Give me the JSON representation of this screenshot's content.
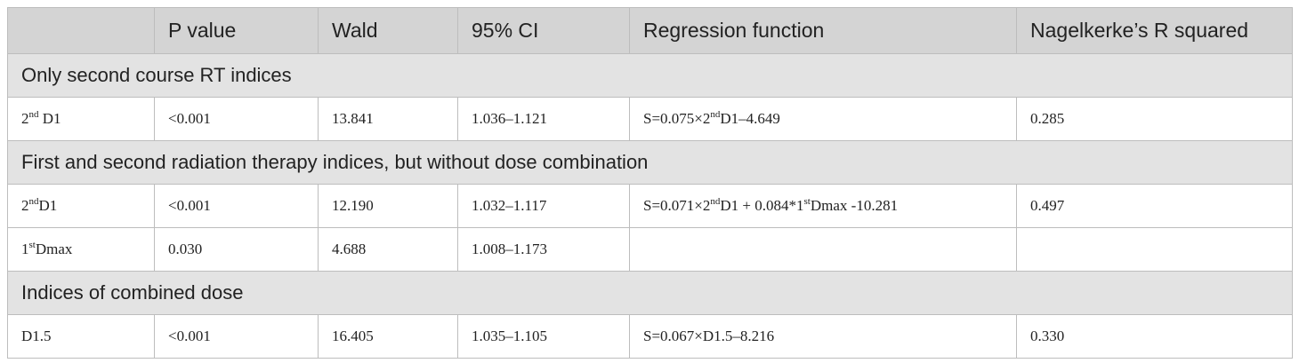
{
  "table": {
    "header": [
      null,
      "P value",
      "Wald",
      "95% CI",
      "Regression function",
      "Nagelkerke’s R squared"
    ],
    "sections": [
      {
        "title": "Only second course RT indices",
        "rows": [
          [
            [
              "2",
              {
                "sup": "nd"
              },
              " D1"
            ],
            "<0.001",
            "13.841",
            "1.036–1.121",
            [
              "S=0.075×2",
              {
                "sup": "nd"
              },
              "D1–4.649"
            ],
            "0.285"
          ]
        ]
      },
      {
        "title": "First and second radiation therapy indices, but without dose combination",
        "rows": [
          [
            [
              "2",
              {
                "sup": "nd"
              },
              "D1"
            ],
            "<0.001",
            "12.190",
            "1.032–1.117",
            [
              "S=0.071×2",
              {
                "sup": "nd"
              },
              "D1 + 0.084*1",
              {
                "sup": "st"
              },
              "Dmax -10.281"
            ],
            "0.497"
          ],
          [
            [
              "1",
              {
                "sup": "st"
              },
              "Dmax"
            ],
            "0.030",
            "4.688",
            "1.008–1.173",
            null,
            null
          ]
        ]
      },
      {
        "title": "Indices of combined dose",
        "rows": [
          [
            "D1.5",
            "<0.001",
            "16.405",
            "1.035–1.105",
            "S=0.067×D1.5–8.216",
            "0.330"
          ]
        ]
      }
    ]
  }
}
